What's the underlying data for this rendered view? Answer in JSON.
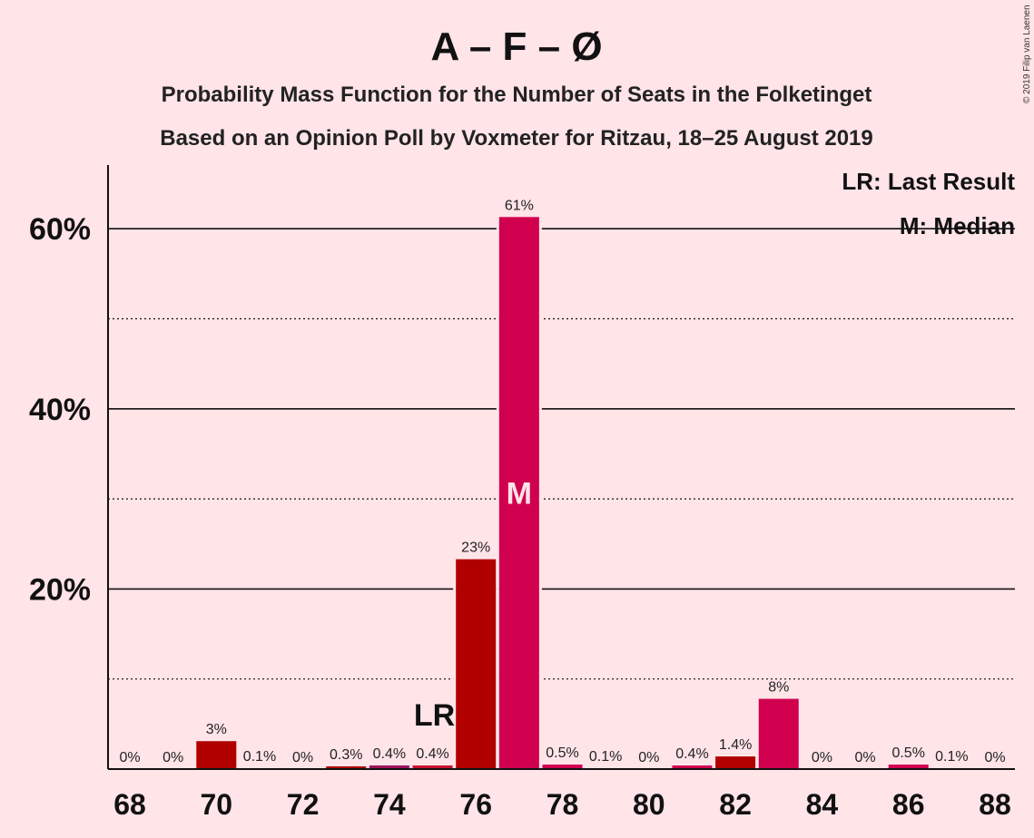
{
  "chart_data": {
    "type": "bar",
    "title": "A – F – Ø",
    "subtitle_1": "Probability Mass Function for the Number of Seats in the Folketinget",
    "subtitle_2": "Based on an Opinion Poll by Voxmeter for Ritzau, 18–25 August 2019",
    "copyright": "© 2019 Filip van Laenen",
    "x": [
      68,
      69,
      70,
      71,
      72,
      73,
      74,
      75,
      76,
      77,
      78,
      79,
      80,
      81,
      82,
      83,
      84,
      85,
      86,
      87,
      88
    ],
    "values": [
      0,
      0,
      3.1,
      0.1,
      0,
      0.3,
      0.4,
      0.4,
      23.3,
      61.3,
      0.5,
      0.1,
      0,
      0.4,
      1.4,
      7.8,
      0,
      0,
      0.5,
      0.1,
      0
    ],
    "data_labels": [
      "0%",
      "0%",
      "3%",
      "0.1%",
      "0%",
      "0.3%",
      "0.4%",
      "0.4%",
      "23%",
      "61%",
      "0.5%",
      "0.1%",
      "0%",
      "0.4%",
      "1.4%",
      "8%",
      "0%",
      "0%",
      "0.5%",
      "0.1%",
      "0%"
    ],
    "bar_colors": [
      "#C8102E",
      "#C8102E",
      "#B00000",
      "#C8102E",
      "#C8102E",
      "#B00000",
      "#A0105A",
      "#C8102E",
      "#B00000",
      "#D0004F",
      "#D0004F",
      "#D0004F",
      "#D0004F",
      "#D0004F",
      "#B00000",
      "#D0004F",
      "#D0004F",
      "#D0004F",
      "#D0004F",
      "#D0004F",
      "#D0004F"
    ],
    "x_tick_labels": [
      "68",
      "70",
      "72",
      "74",
      "76",
      "78",
      "80",
      "82",
      "84",
      "86",
      "88"
    ],
    "y_tick_values": [
      20,
      40,
      60
    ],
    "y_tick_labels": [
      "20%",
      "40%",
      "60%"
    ],
    "y_minor_gridlines": [
      10,
      30,
      50
    ],
    "ylim": [
      0,
      67
    ],
    "grid": true,
    "last_result_seat": 75,
    "median_seat": 77,
    "lr_marker": "LR",
    "median_marker": "M",
    "legend": {
      "position": "top-right",
      "lr_text": "LR: Last Result",
      "median_text": "M: Median"
    }
  }
}
